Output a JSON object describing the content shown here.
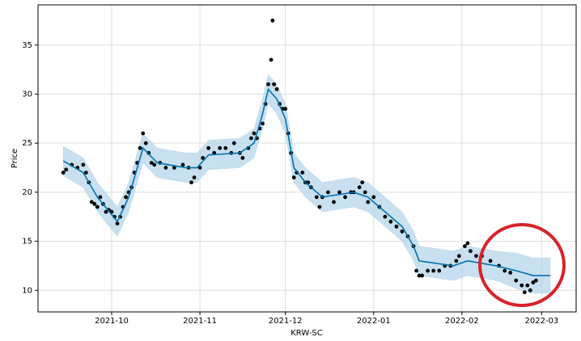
{
  "chart_data": {
    "type": "forecast",
    "xlabel": "KRW-SC",
    "ylabel": "Price",
    "xlim": [
      4.15,
      193.1
    ],
    "ylim": [
      7.8,
      39.1
    ],
    "xticks": [
      {
        "value": 30,
        "label": "2021-10"
      },
      {
        "value": 61,
        "label": "2021-11"
      },
      {
        "value": 91,
        "label": "2021-12"
      },
      {
        "value": 122,
        "label": "2022-01"
      },
      {
        "value": 153,
        "label": "2022-02"
      },
      {
        "value": 181,
        "label": "2022-03"
      }
    ],
    "yticks": [
      10,
      15,
      20,
      25,
      30,
      35
    ],
    "grid": true,
    "points": {
      "color": "#000000",
      "x": [
        13,
        14,
        16,
        18,
        20,
        21,
        22,
        23,
        24,
        25,
        26,
        27,
        28,
        29,
        30,
        31,
        32,
        33,
        34,
        35,
        36,
        37,
        38,
        39,
        40,
        41,
        42,
        43,
        44,
        45,
        47,
        49,
        52,
        55,
        57,
        58,
        59,
        61,
        62,
        64,
        66,
        68,
        70,
        72,
        73,
        75,
        76,
        78,
        79,
        80,
        81,
        82,
        83,
        84,
        85,
        86,
        86.5,
        87,
        88,
        89,
        90,
        91,
        92,
        93,
        94,
        95,
        97,
        98,
        99,
        100,
        102,
        103,
        104,
        106,
        108,
        110,
        112,
        114,
        115,
        117,
        118,
        119,
        120,
        122,
        124,
        126,
        128,
        130,
        132,
        134,
        136,
        137,
        138,
        139,
        141,
        143,
        145,
        147,
        149,
        151,
        152,
        154,
        155,
        156,
        158,
        160,
        163,
        166,
        168,
        170,
        172,
        174,
        175,
        176,
        177,
        178,
        179
      ],
      "values": [
        22,
        22.3,
        22.8,
        22.5,
        22.8,
        22,
        21,
        19,
        18.8,
        18.5,
        19.5,
        18.8,
        18,
        18.2,
        18,
        17.5,
        16.8,
        17.5,
        18.5,
        19.5,
        20,
        20.5,
        22,
        23,
        24.5,
        26,
        25,
        24,
        23,
        22.8,
        23,
        22.5,
        22.5,
        22.8,
        22.5,
        21,
        21.5,
        22.5,
        23.5,
        24.5,
        24,
        24.5,
        24.5,
        24,
        25,
        24,
        23.5,
        24.5,
        25.5,
        26,
        25.5,
        26.5,
        27,
        29,
        31,
        33.5,
        37.5,
        31,
        30.5,
        29,
        28.5,
        28.5,
        26,
        24,
        21.5,
        22,
        22,
        21,
        21,
        20.5,
        19.5,
        18.5,
        19.5,
        20,
        19,
        20,
        19.5,
        20,
        20,
        20.5,
        21,
        20,
        19,
        19.5,
        18.5,
        17.5,
        17,
        16.5,
        16,
        15.5,
        14.5,
        12,
        11.5,
        11.5,
        12,
        12,
        12,
        12.5,
        12.5,
        13,
        13.5,
        14.5,
        14.8,
        14,
        13.5,
        13.5,
        13,
        12.5,
        12,
        11.8,
        11,
        10.5,
        9.8,
        10.5,
        10,
        10.8,
        11
      ]
    },
    "forecast": {
      "color": "#0072b2",
      "band_color": "#b6d5ea",
      "x": [
        13,
        20,
        25,
        32,
        36,
        41,
        46,
        56,
        60,
        64,
        75,
        80,
        83,
        85,
        88,
        91,
        94,
        98,
        104,
        115,
        120,
        126,
        132,
        136,
        138,
        150,
        155,
        165,
        172,
        178,
        184
      ],
      "values": [
        23.2,
        22,
        19.5,
        17,
        19.5,
        24.5,
        23,
        22.5,
        22.5,
        23.8,
        24,
        25,
        28,
        30.5,
        29.5,
        27.5,
        22.5,
        21,
        19.5,
        20,
        19.5,
        18,
        16.5,
        14.5,
        13,
        12.5,
        13,
        12.5,
        12,
        11.5,
        11.5
      ],
      "lower": [
        21.7,
        20.5,
        18,
        15.5,
        18,
        23,
        21.5,
        21,
        21,
        22.3,
        22.5,
        23.5,
        26.5,
        29,
        28,
        26,
        21,
        19.5,
        18,
        18.5,
        18,
        16.5,
        15,
        13,
        11.5,
        11,
        11.5,
        11,
        10.2,
        9.7,
        9.7
      ],
      "upper": [
        24.7,
        23.5,
        21,
        18.5,
        21,
        26,
        24.5,
        24,
        24,
        25.3,
        25.5,
        26.5,
        29.5,
        32,
        31,
        29,
        24,
        22.5,
        21,
        21.5,
        21,
        19.5,
        18,
        16,
        14.5,
        14,
        14.5,
        14,
        13.8,
        13.3,
        13.3
      ]
    }
  }
}
